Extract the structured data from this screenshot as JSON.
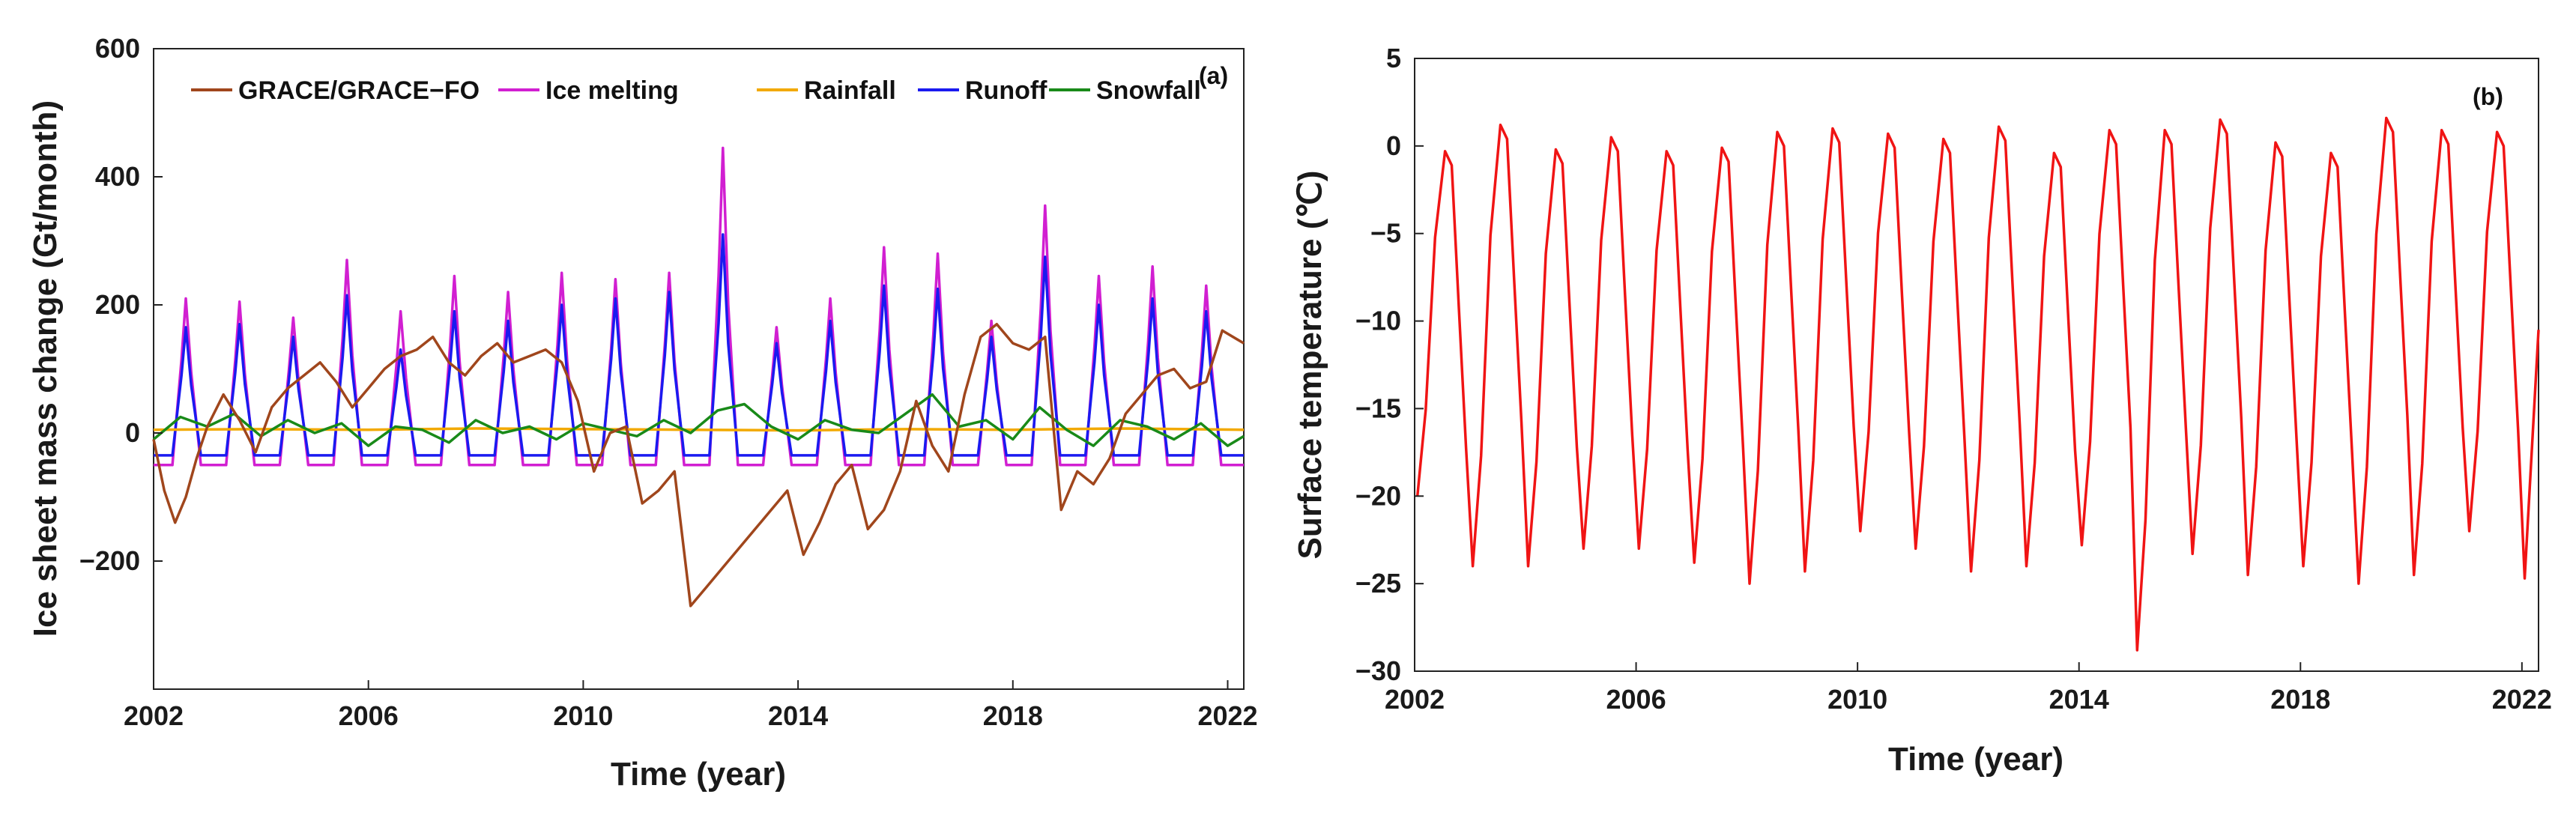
{
  "chart_data": [
    {
      "panel": "(a)",
      "type": "line",
      "xlabel": "Time (year)",
      "ylabel": "Ice sheet mass change (Gt/month)",
      "xlim": [
        2002,
        2022.3
      ],
      "ylim": [
        -400,
        600
      ],
      "xticks": [
        2002,
        2006,
        2010,
        2014,
        2018,
        2022
      ],
      "yticks": [
        600,
        400,
        200,
        0,
        -200
      ],
      "ytick_labels": [
        "600",
        "400",
        "200",
        "0",
        "−200"
      ],
      "legend_placement": "top",
      "series": [
        {
          "name": "GRACE/GRACE−FO",
          "color": "#a0461c",
          "x": [
            2002.0,
            2002.2,
            2002.4,
            2002.6,
            2002.8,
            2003.0,
            2003.3,
            2003.6,
            2003.9,
            2004.2,
            2004.5,
            2004.8,
            2005.1,
            2005.4,
            2005.7,
            2006.0,
            2006.3,
            2006.6,
            2006.9,
            2007.2,
            2007.5,
            2007.8,
            2008.1,
            2008.4,
            2008.7,
            2009.0,
            2009.3,
            2009.6,
            2009.9,
            2010.2,
            2010.5,
            2010.8,
            2011.1,
            2011.4,
            2011.7,
            2012.0,
            2012.3,
            2012.6,
            2012.9,
            2013.2,
            2013.5,
            2013.8,
            2014.1,
            2014.4,
            2014.7,
            2015.0,
            2015.3,
            2015.6,
            2015.9,
            2016.2,
            2016.5,
            2016.8,
            2017.1,
            2017.4,
            2017.7,
            2018.0,
            2018.3,
            2018.6,
            2018.9,
            2019.2,
            2019.5,
            2019.8,
            2020.1,
            2020.4,
            2020.7,
            2021.0,
            2021.3,
            2021.6,
            2021.9,
            2022.3
          ],
          "y": [
            -10,
            -90,
            -140,
            -100,
            -40,
            10,
            60,
            20,
            -30,
            40,
            70,
            90,
            110,
            80,
            40,
            70,
            100,
            120,
            130,
            150,
            110,
            90,
            120,
            140,
            110,
            120,
            130,
            110,
            50,
            -60,
            0,
            10,
            -110,
            -90,
            -60,
            -270,
            -240,
            -210,
            -180,
            -150,
            -120,
            -90,
            -190,
            -140,
            -80,
            -50,
            -150,
            -120,
            -60,
            50,
            -20,
            -60,
            60,
            150,
            170,
            140,
            130,
            150,
            -120,
            -60,
            -80,
            -40,
            30,
            60,
            90,
            100,
            70,
            80,
            160,
            140
          ]
        },
        {
          "name": "Ice melting",
          "color": "#d11fd1",
          "peak_x": [
            2002.6,
            2003.6,
            2004.6,
            2005.6,
            2006.6,
            2007.6,
            2008.6,
            2009.6,
            2010.6,
            2011.6,
            2012.6,
            2013.6,
            2014.6,
            2015.6,
            2016.6,
            2017.6,
            2018.6,
            2019.6,
            2020.6,
            2021.6
          ],
          "peak_y": [
            210,
            205,
            180,
            270,
            190,
            245,
            220,
            250,
            240,
            250,
            445,
            165,
            210,
            290,
            280,
            175,
            355,
            245,
            260,
            230
          ],
          "base": -50
        },
        {
          "name": "Rainfall",
          "color": "#f2a900",
          "x": [
            2002,
            2004,
            2006,
            2008,
            2010,
            2012,
            2014,
            2016,
            2018,
            2020,
            2022.3
          ],
          "y": [
            5,
            6,
            5,
            7,
            6,
            5,
            4,
            6,
            5,
            7,
            5
          ]
        },
        {
          "name": "Runoff",
          "color": "#1a1af0",
          "peak_x": [
            2002.6,
            2003.6,
            2004.6,
            2005.6,
            2006.6,
            2007.6,
            2008.6,
            2009.6,
            2010.6,
            2011.6,
            2012.6,
            2013.6,
            2014.6,
            2015.6,
            2016.6,
            2017.6,
            2018.6,
            2019.6,
            2020.6,
            2021.6
          ],
          "peak_y": [
            165,
            170,
            150,
            215,
            130,
            190,
            175,
            200,
            210,
            220,
            310,
            140,
            175,
            230,
            225,
            150,
            275,
            200,
            210,
            190
          ],
          "base": -35
        },
        {
          "name": "Snowfall",
          "color": "#198a19",
          "x": [
            2002.0,
            2002.5,
            2003.0,
            2003.5,
            2004.0,
            2004.5,
            2005.0,
            2005.5,
            2006.0,
            2006.5,
            2007.0,
            2007.5,
            2008.0,
            2008.5,
            2009.0,
            2009.5,
            2010.0,
            2010.5,
            2011.0,
            2011.5,
            2012.0,
            2012.5,
            2013.0,
            2013.5,
            2014.0,
            2014.5,
            2015.0,
            2015.5,
            2016.0,
            2016.5,
            2017.0,
            2017.5,
            2018.0,
            2018.5,
            2019.0,
            2019.5,
            2020.0,
            2020.5,
            2021.0,
            2021.5,
            2022.0,
            2022.3
          ],
          "y": [
            -10,
            25,
            10,
            30,
            -5,
            20,
            0,
            15,
            -20,
            10,
            5,
            -15,
            20,
            0,
            10,
            -10,
            15,
            5,
            -5,
            20,
            0,
            35,
            45,
            10,
            -10,
            20,
            5,
            0,
            30,
            60,
            10,
            20,
            -10,
            40,
            5,
            -20,
            20,
            10,
            -10,
            15,
            -20,
            -5
          ]
        }
      ]
    },
    {
      "panel": "(b)",
      "type": "line",
      "xlabel": "Time (year)",
      "ylabel": "Surface temperature (℃)",
      "xlim": [
        2002,
        2022.3
      ],
      "ylim": [
        -30,
        5
      ],
      "xticks": [
        2002,
        2006,
        2010,
        2014,
        2018,
        2022
      ],
      "yticks": [
        5,
        0,
        -5,
        -10,
        -15,
        -20,
        -25,
        -30
      ],
      "ytick_labels": [
        "5",
        "0",
        "−5",
        "−10",
        "−15",
        "−20",
        "−25",
        "−30"
      ],
      "series": [
        {
          "name": "Surface temperature",
          "color": "#f01414",
          "peak_x": [
            2002.55,
            2003.55,
            2004.55,
            2005.55,
            2006.55,
            2007.55,
            2008.55,
            2009.55,
            2010.55,
            2011.55,
            2012.55,
            2013.55,
            2014.55,
            2015.55,
            2016.55,
            2017.55,
            2018.55,
            2019.55,
            2020.55,
            2021.55
          ],
          "peak_y": [
            -0.3,
            1.2,
            -0.2,
            0.5,
            -0.3,
            -0.1,
            0.8,
            1.0,
            0.7,
            0.4,
            1.1,
            -0.4,
            0.9,
            0.9,
            1.5,
            0.2,
            -0.4,
            1.6,
            0.9,
            0.8
          ],
          "trough_x": [
            2002.05,
            2003.05,
            2004.05,
            2005.05,
            2006.05,
            2007.05,
            2008.05,
            2009.05,
            2010.05,
            2011.05,
            2012.05,
            2013.05,
            2014.05,
            2015.05,
            2016.05,
            2017.05,
            2018.05,
            2019.05,
            2020.05,
            2021.05,
            2022.05
          ],
          "trough_y": [
            -20,
            -24,
            -24,
            -23,
            -23,
            -23.8,
            -25,
            -24.3,
            -22,
            -23,
            -24.3,
            -24,
            -22.8,
            -28.8,
            -23.3,
            -24.5,
            -24,
            -25,
            -24.5,
            -22,
            -24.7
          ],
          "end_x": 2022.3,
          "end_y": -10.5
        }
      ]
    }
  ]
}
